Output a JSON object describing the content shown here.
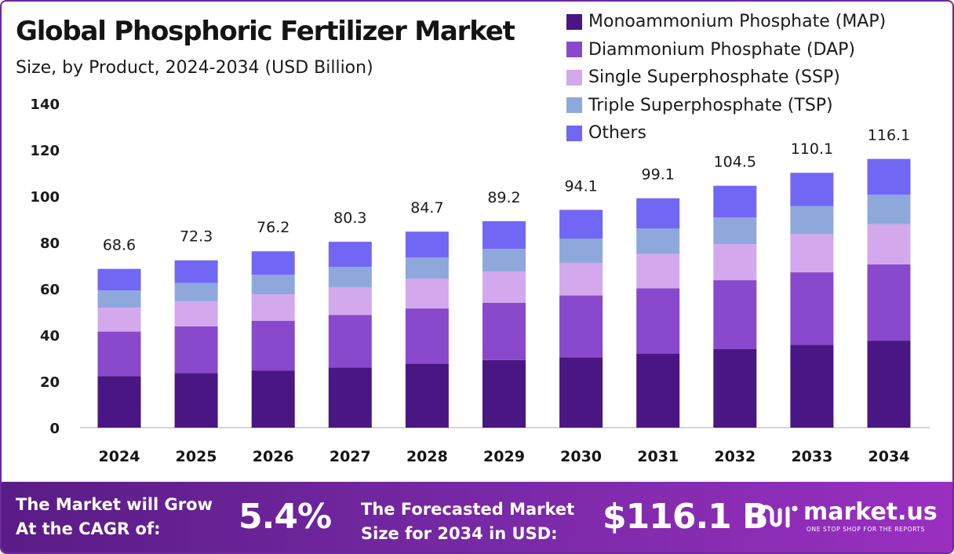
{
  "header": {
    "title": "Global Phosphoric Fertilizer Market",
    "subtitle": "Size, by Product, 2024-2034 (USD Billion)"
  },
  "chart_data": {
    "type": "bar",
    "stacked": true,
    "categories": [
      "2024",
      "2025",
      "2026",
      "2027",
      "2028",
      "2029",
      "2030",
      "2031",
      "2032",
      "2033",
      "2034"
    ],
    "series": [
      {
        "name": "Monoammonium Phosphate (MAP)",
        "color": "#4a1683",
        "values": [
          22.3,
          23.6,
          24.7,
          26.0,
          27.6,
          29.2,
          30.4,
          32.0,
          33.9,
          35.8,
          37.6
        ]
      },
      {
        "name": "Diammonium Phosphate (DAP)",
        "color": "#8849cc",
        "values": [
          19.2,
          20.2,
          21.5,
          22.7,
          23.9,
          24.8,
          26.7,
          28.2,
          29.8,
          31.3,
          32.9
        ]
      },
      {
        "name": "Single Superphosphate (SSP)",
        "color": "#d4a8ec",
        "values": [
          10.3,
          10.8,
          11.4,
          12.0,
          12.8,
          13.4,
          14.1,
          14.9,
          15.6,
          16.5,
          17.4
        ]
      },
      {
        "name": "Triple Superphosphate (TSP)",
        "color": "#8fa8dc",
        "values": [
          7.5,
          7.9,
          8.4,
          8.8,
          9.2,
          9.8,
          10.4,
          10.9,
          11.5,
          12.1,
          12.7
        ]
      },
      {
        "name": "Others",
        "color": "#7267f4",
        "values": [
          9.3,
          9.8,
          10.2,
          10.8,
          11.2,
          12.0,
          12.5,
          13.1,
          13.7,
          14.4,
          15.5
        ]
      }
    ],
    "totals": [
      "68.6",
      "72.3",
      "76.2",
      "80.3",
      "84.7",
      "89.2",
      "94.1",
      "99.1",
      "104.5",
      "110.1",
      "116.1"
    ],
    "y_ticks": [
      "0",
      "20",
      "40",
      "60",
      "80",
      "100",
      "120",
      "140"
    ],
    "ylim": [
      0,
      140
    ],
    "grid": false,
    "legend_position": "top-right"
  },
  "banner": {
    "cagr_text_line1": "The Market will Grow",
    "cagr_text_line2": "At the CAGR of:",
    "cagr_value": "5.4%",
    "forecast_text_line1": "The Forecasted Market",
    "forecast_text_line2": "Size for 2034 in USD:",
    "forecast_value": "$116.1 B",
    "brand_name": "market.us",
    "brand_tagline": "ONE STOP SHOP FOR THE REPORTS"
  },
  "logo_icon": "market-us-logo-icon",
  "colors": {
    "banner_start": "#5a1c86",
    "banner_end": "#9a2fc0",
    "border": "#6a2a9a"
  }
}
